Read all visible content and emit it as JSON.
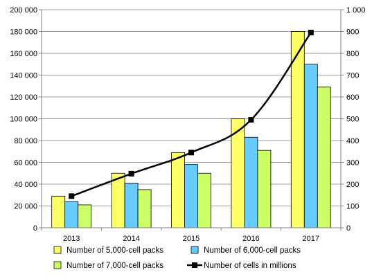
{
  "chart_data": {
    "type": "bar",
    "categories": [
      "2013",
      "2014",
      "2015",
      "2016",
      "2017"
    ],
    "series": [
      {
        "name": "Number of 5,000-cell packs",
        "kind": "bar",
        "axis": "left",
        "color": "#ffff66",
        "values": [
          29000,
          50000,
          69000,
          100000,
          180000
        ]
      },
      {
        "name": "Number of 6,000-cell packs",
        "kind": "bar",
        "axis": "left",
        "color": "#66ccff",
        "values": [
          24000,
          41000,
          58000,
          83000,
          150000
        ]
      },
      {
        "name": "Number of 7,000-cell packs",
        "kind": "bar",
        "axis": "left",
        "color": "#ccff66",
        "values": [
          21000,
          35000,
          50000,
          71000,
          129000
        ]
      },
      {
        "name": "Number of cells in millions",
        "kind": "line",
        "axis": "right",
        "color": "#000000",
        "marker": "square",
        "values": [
          145,
          248,
          345,
          495,
          895
        ]
      }
    ],
    "y_left": {
      "min": 0,
      "max": 200000,
      "ticks": [
        "0",
        "20 000",
        "40 000",
        "60 000",
        "80 000",
        "100 000",
        "120 000",
        "140 000",
        "160 000",
        "180 000",
        "200 000"
      ]
    },
    "y_right": {
      "min": 0,
      "max": 1000,
      "ticks": [
        "0",
        "100",
        "200",
        "300",
        "400",
        "500",
        "600",
        "700",
        "800",
        "900",
        "1 000"
      ]
    },
    "grid": true,
    "legend_position": "bottom"
  }
}
